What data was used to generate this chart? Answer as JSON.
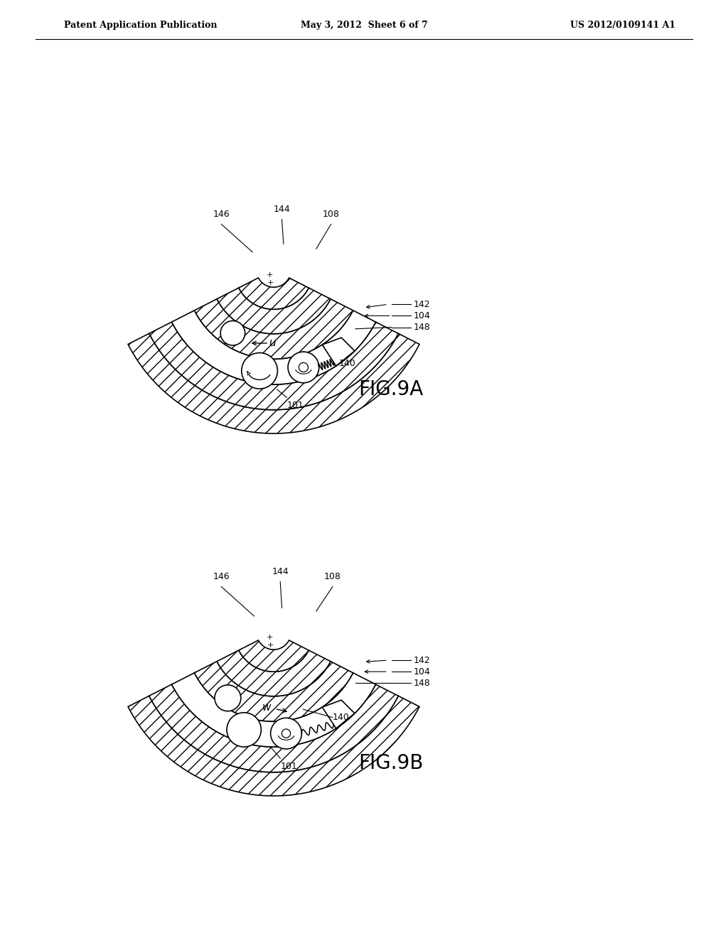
{
  "background_color": "#ffffff",
  "header": {
    "left": "Patent Application Publication",
    "center": "May 3, 2012  Sheet 6 of 7",
    "right": "US 2012/0109141 A1",
    "fontsize": 10
  }
}
